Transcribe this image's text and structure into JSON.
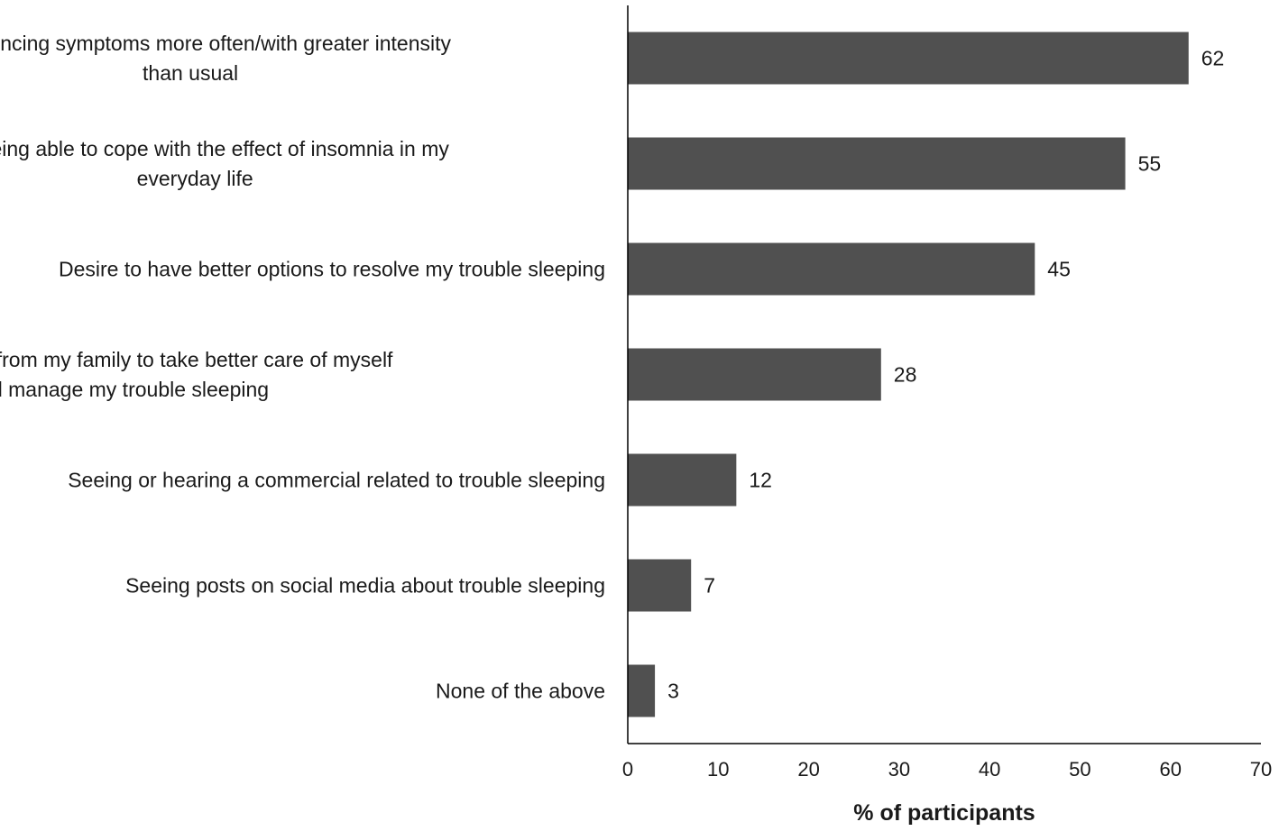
{
  "chart_data": {
    "type": "bar",
    "orientation": "horizontal",
    "categories": [
      [
        "Experiencing symptoms more often/with greater intensity",
        "than usual"
      ],
      [
        "Not being able to cope with the effect of insomnia in my",
        "everyday life"
      ],
      [
        "Desire to have better options to resolve my trouble sleeping"
      ],
      [
        "Encouragement from my family to take better care of myself",
        "and manage my trouble sleeping"
      ],
      [
        "Seeing or hearing a commercial related to trouble sleeping"
      ],
      [
        "Seeing posts on social media about trouble sleeping"
      ],
      [
        "None of the above"
      ]
    ],
    "values": [
      62,
      55,
      45,
      28,
      12,
      7,
      3
    ],
    "xlabel": "% of participants",
    "xlim": [
      0,
      70
    ],
    "xticks": [
      0,
      10,
      20,
      30,
      40,
      50,
      60,
      70
    ],
    "bar_color": "#505050",
    "grid": false,
    "legend": "none",
    "data_labels": true
  }
}
